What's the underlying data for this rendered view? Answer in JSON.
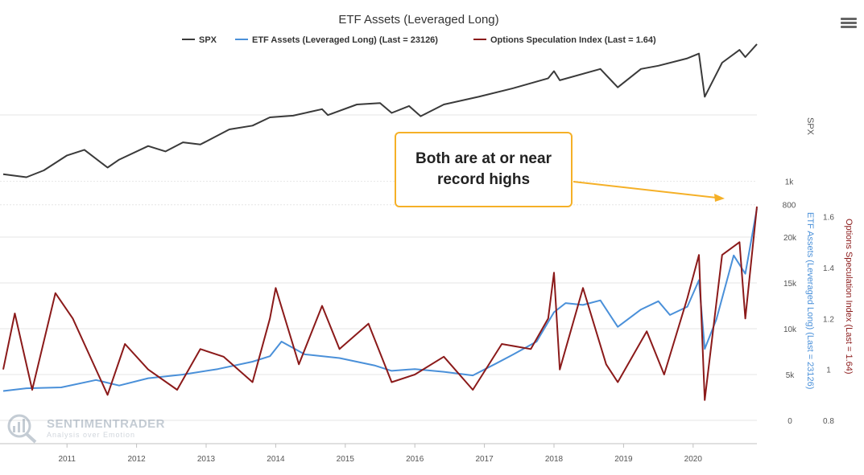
{
  "chart_data": {
    "type": "line",
    "title": "ETF Assets (Leveraged Long)",
    "legend_position": "top-center",
    "series": [
      {
        "name": "SPX",
        "color": "#3a3a3a",
        "axis": "spx",
        "points": [
          [
            "2010-02",
            1070
          ],
          [
            "2010-06",
            1040
          ],
          [
            "2010-09",
            1110
          ],
          [
            "2011-01",
            1280
          ],
          [
            "2011-04",
            1350
          ],
          [
            "2011-08",
            1140
          ],
          [
            "2011-10",
            1230
          ],
          [
            "2012-03",
            1400
          ],
          [
            "2012-06",
            1330
          ],
          [
            "2012-09",
            1450
          ],
          [
            "2012-12",
            1420
          ],
          [
            "2013-05",
            1640
          ],
          [
            "2013-09",
            1700
          ],
          [
            "2013-12",
            1840
          ],
          [
            "2014-04",
            1870
          ],
          [
            "2014-09",
            1990
          ],
          [
            "2014-10",
            1880
          ],
          [
            "2015-03",
            2080
          ],
          [
            "2015-07",
            2110
          ],
          [
            "2015-09",
            1920
          ],
          [
            "2015-12",
            2050
          ],
          [
            "2016-02",
            1860
          ],
          [
            "2016-06",
            2080
          ],
          [
            "2016-12",
            2240
          ],
          [
            "2017-06",
            2430
          ],
          [
            "2017-12",
            2670
          ],
          [
            "2018-01",
            2860
          ],
          [
            "2018-02",
            2620
          ],
          [
            "2018-09",
            2920
          ],
          [
            "2018-12",
            2450
          ],
          [
            "2019-04",
            2920
          ],
          [
            "2019-07",
            3010
          ],
          [
            "2019-12",
            3230
          ],
          [
            "2020-02",
            3380
          ],
          [
            "2020-03",
            2240
          ],
          [
            "2020-06",
            3100
          ],
          [
            "2020-09",
            3500
          ],
          [
            "2020-10",
            3270
          ],
          [
            "2020-12",
            3700
          ]
        ]
      },
      {
        "name": "ETF Assets (Leveraged Long) (Last = 23126)",
        "color": "#4a90d9",
        "axis": "etf",
        "points": [
          [
            "2010-02",
            3200
          ],
          [
            "2010-06",
            3500
          ],
          [
            "2010-12",
            3600
          ],
          [
            "2011-06",
            4400
          ],
          [
            "2011-10",
            3800
          ],
          [
            "2012-03",
            4600
          ],
          [
            "2012-09",
            5000
          ],
          [
            "2013-03",
            5600
          ],
          [
            "2013-09",
            6400
          ],
          [
            "2013-12",
            7000
          ],
          [
            "2014-02",
            8600
          ],
          [
            "2014-06",
            7200
          ],
          [
            "2014-12",
            6800
          ],
          [
            "2015-06",
            6000
          ],
          [
            "2015-09",
            5400
          ],
          [
            "2016-01",
            5600
          ],
          [
            "2016-06",
            5300
          ],
          [
            "2016-11",
            4900
          ],
          [
            "2017-03",
            6200
          ],
          [
            "2017-06",
            7200
          ],
          [
            "2017-10",
            8600
          ],
          [
            "2018-01",
            11800
          ],
          [
            "2018-03",
            12800
          ],
          [
            "2018-06",
            12600
          ],
          [
            "2018-09",
            13100
          ],
          [
            "2018-12",
            10200
          ],
          [
            "2019-04",
            12100
          ],
          [
            "2019-07",
            13000
          ],
          [
            "2019-09",
            11500
          ],
          [
            "2019-12",
            12400
          ],
          [
            "2020-02",
            15300
          ],
          [
            "2020-03",
            7800
          ],
          [
            "2020-05",
            11000
          ],
          [
            "2020-08",
            18000
          ],
          [
            "2020-10",
            16000
          ],
          [
            "2020-12",
            23126
          ]
        ]
      },
      {
        "name": "Options Speculation Index (Last = 1.64)",
        "color": "#8b1a1a",
        "axis": "osi",
        "points": [
          [
            "2010-02",
            1.0
          ],
          [
            "2010-04",
            1.22
          ],
          [
            "2010-07",
            0.92
          ],
          [
            "2010-11",
            1.3
          ],
          [
            "2011-02",
            1.2
          ],
          [
            "2011-08",
            0.9
          ],
          [
            "2011-11",
            1.1
          ],
          [
            "2012-03",
            1.0
          ],
          [
            "2012-08",
            0.92
          ],
          [
            "2012-12",
            1.08
          ],
          [
            "2013-04",
            1.05
          ],
          [
            "2013-09",
            0.95
          ],
          [
            "2013-12",
            1.2
          ],
          [
            "2014-01",
            1.32
          ],
          [
            "2014-05",
            1.02
          ],
          [
            "2014-09",
            1.25
          ],
          [
            "2014-12",
            1.08
          ],
          [
            "2015-05",
            1.18
          ],
          [
            "2015-09",
            0.95
          ],
          [
            "2016-01",
            0.98
          ],
          [
            "2016-06",
            1.05
          ],
          [
            "2016-11",
            0.92
          ],
          [
            "2017-04",
            1.1
          ],
          [
            "2017-09",
            1.08
          ],
          [
            "2017-12",
            1.2
          ],
          [
            "2018-01",
            1.38
          ],
          [
            "2018-02",
            1.0
          ],
          [
            "2018-06",
            1.32
          ],
          [
            "2018-10",
            1.02
          ],
          [
            "2018-12",
            0.95
          ],
          [
            "2019-05",
            1.15
          ],
          [
            "2019-08",
            0.98
          ],
          [
            "2019-12",
            1.28
          ],
          [
            "2020-02",
            1.45
          ],
          [
            "2020-03",
            0.88
          ],
          [
            "2020-06",
            1.45
          ],
          [
            "2020-09",
            1.5
          ],
          [
            "2020-10",
            1.2
          ],
          [
            "2020-12",
            1.64
          ]
        ]
      }
    ],
    "x_axis": {
      "tick_labels": [
        "2011",
        "2012",
        "2013",
        "2014",
        "2015",
        "2016",
        "2017",
        "2018",
        "2019",
        "2020"
      ],
      "range": [
        "2010-02",
        "2020-12"
      ]
    },
    "axes": {
      "spx": {
        "label": "SPX",
        "scale": "log",
        "range": [
          780,
          3900
        ],
        "tick_labels": [
          [
            "1k",
            1000
          ],
          [
            "800",
            800
          ]
        ]
      },
      "etf": {
        "label": "ETF Assets (Leveraged Long) (Last = 23126)",
        "range": [
          0,
          25000
        ],
        "tick_labels": [
          [
            "0",
            0
          ],
          [
            "5k",
            5000
          ],
          [
            "10k",
            10000
          ],
          [
            "15k",
            15000
          ],
          [
            "20k",
            20000
          ]
        ],
        "color": "#4a90d9"
      },
      "osi": {
        "label": "Options Speculation Index (Last = 1.64)",
        "range": [
          0.8,
          1.7
        ],
        "tick_labels": [
          [
            "0.8",
            0.8
          ],
          [
            "1",
            1.0
          ],
          [
            "1.2",
            1.2
          ],
          [
            "1.4",
            1.4
          ],
          [
            "1.6",
            1.6
          ]
        ],
        "color": "#8b1a1a"
      }
    },
    "annotation": "Both are at or near record highs",
    "grid": true
  },
  "watermark": {
    "name": "SENTIMENTRADER",
    "tagline": "Analysis over Emotion"
  },
  "menu": {
    "icon": "hamburger-menu-icon"
  }
}
